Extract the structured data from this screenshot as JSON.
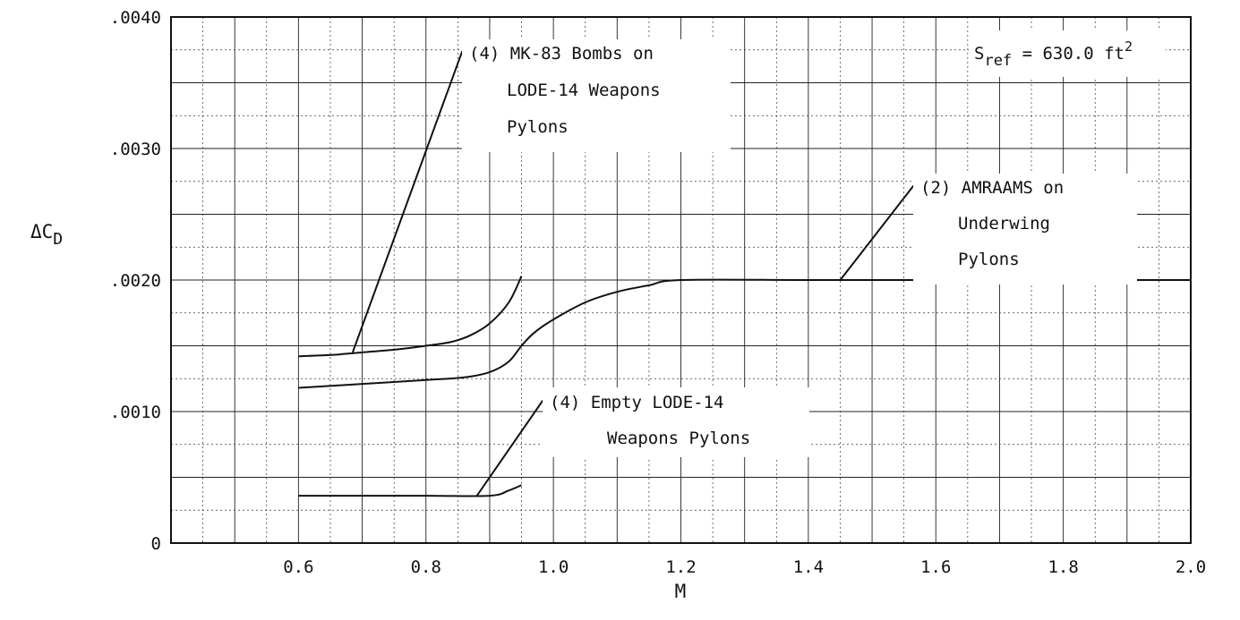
{
  "chart_data": {
    "type": "line",
    "title": "",
    "xlabel": "M",
    "ylabel": "ΔC",
    "ylabel_sub": "D",
    "xlim": [
      0.4,
      2.0
    ],
    "ylim": [
      0,
      0.004
    ],
    "x_ticks": [
      0.6,
      0.8,
      1.0,
      1.2,
      1.4,
      1.6,
      1.8,
      2.0
    ],
    "x_tick_labels": [
      "0.6",
      "0.8",
      "1.0",
      "1.2",
      "1.4",
      "1.6",
      "1.8",
      "2.0"
    ],
    "y_ticks": [
      0,
      0.001,
      0.002,
      0.003,
      0.004
    ],
    "y_tick_labels": [
      "0",
      ".0010",
      ".0020",
      ".0030",
      ".0040"
    ],
    "grid": true,
    "reference": {
      "main": "S",
      "sub": "ref",
      "value": " = 630.0 ft",
      "sup": "2"
    },
    "series": [
      {
        "x": [
          0.6,
          0.65,
          0.7,
          0.75,
          0.8,
          0.84,
          0.87,
          0.9,
          0.93,
          0.95
        ],
        "y": [
          0.00142,
          0.00143,
          0.00145,
          0.00147,
          0.0015,
          0.00153,
          0.00158,
          0.00167,
          0.00183,
          0.00203
        ]
      },
      {
        "x": [
          0.6,
          0.7,
          0.8,
          0.86,
          0.9,
          0.93,
          0.95,
          0.97,
          1.0,
          1.05,
          1.1,
          1.15,
          1.2,
          1.4,
          1.6,
          1.8,
          2.0
        ],
        "y": [
          0.00118,
          0.00121,
          0.00124,
          0.00126,
          0.0013,
          0.00138,
          0.0015,
          0.0016,
          0.0017,
          0.00183,
          0.00191,
          0.00196,
          0.002,
          0.002,
          0.002,
          0.002,
          0.002
        ]
      },
      {
        "x": [
          0.6,
          0.7,
          0.8,
          0.9,
          0.93,
          0.95
        ],
        "y": [
          0.00036,
          0.00036,
          0.00036,
          0.00036,
          0.0004,
          0.00044
        ]
      }
    ],
    "annotations": [
      {
        "lines": [
          "(4) MK-83 Bombs on",
          "LODE-14 Weapons",
          "Pylons"
        ],
        "arrow_to": [
          0.685,
          0.00145
        ]
      },
      {
        "lines": [
          "(2) AMRAAMS on",
          "Underwing",
          "Pylons"
        ],
        "arrow_to": [
          1.45,
          0.002
        ]
      },
      {
        "lines": [
          "(4) Empty LODE-14",
          "Weapons Pylons"
        ],
        "arrow_to": [
          0.88,
          0.00036
        ]
      }
    ]
  }
}
